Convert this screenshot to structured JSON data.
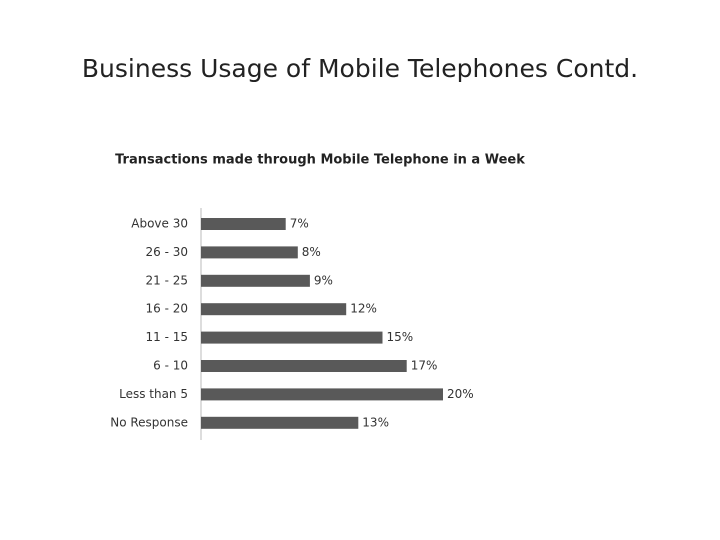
{
  "slide_title": "Business Usage of Mobile Telephones Contd.",
  "chart_data": {
    "type": "bar",
    "orientation": "horizontal",
    "title": "Transactions made through Mobile Telephone in a Week",
    "categories": [
      "Above 30",
      "26 - 30",
      "21 - 25",
      "16 - 20",
      "11 - 15",
      "6 - 10",
      "Less than 5",
      "No Response"
    ],
    "values": [
      7,
      8,
      9,
      12,
      15,
      17,
      20,
      13
    ],
    "value_labels": [
      "7%",
      "8%",
      "9%",
      "12%",
      "15%",
      "17%",
      "20%",
      "13%"
    ],
    "color": "#595959"
  }
}
